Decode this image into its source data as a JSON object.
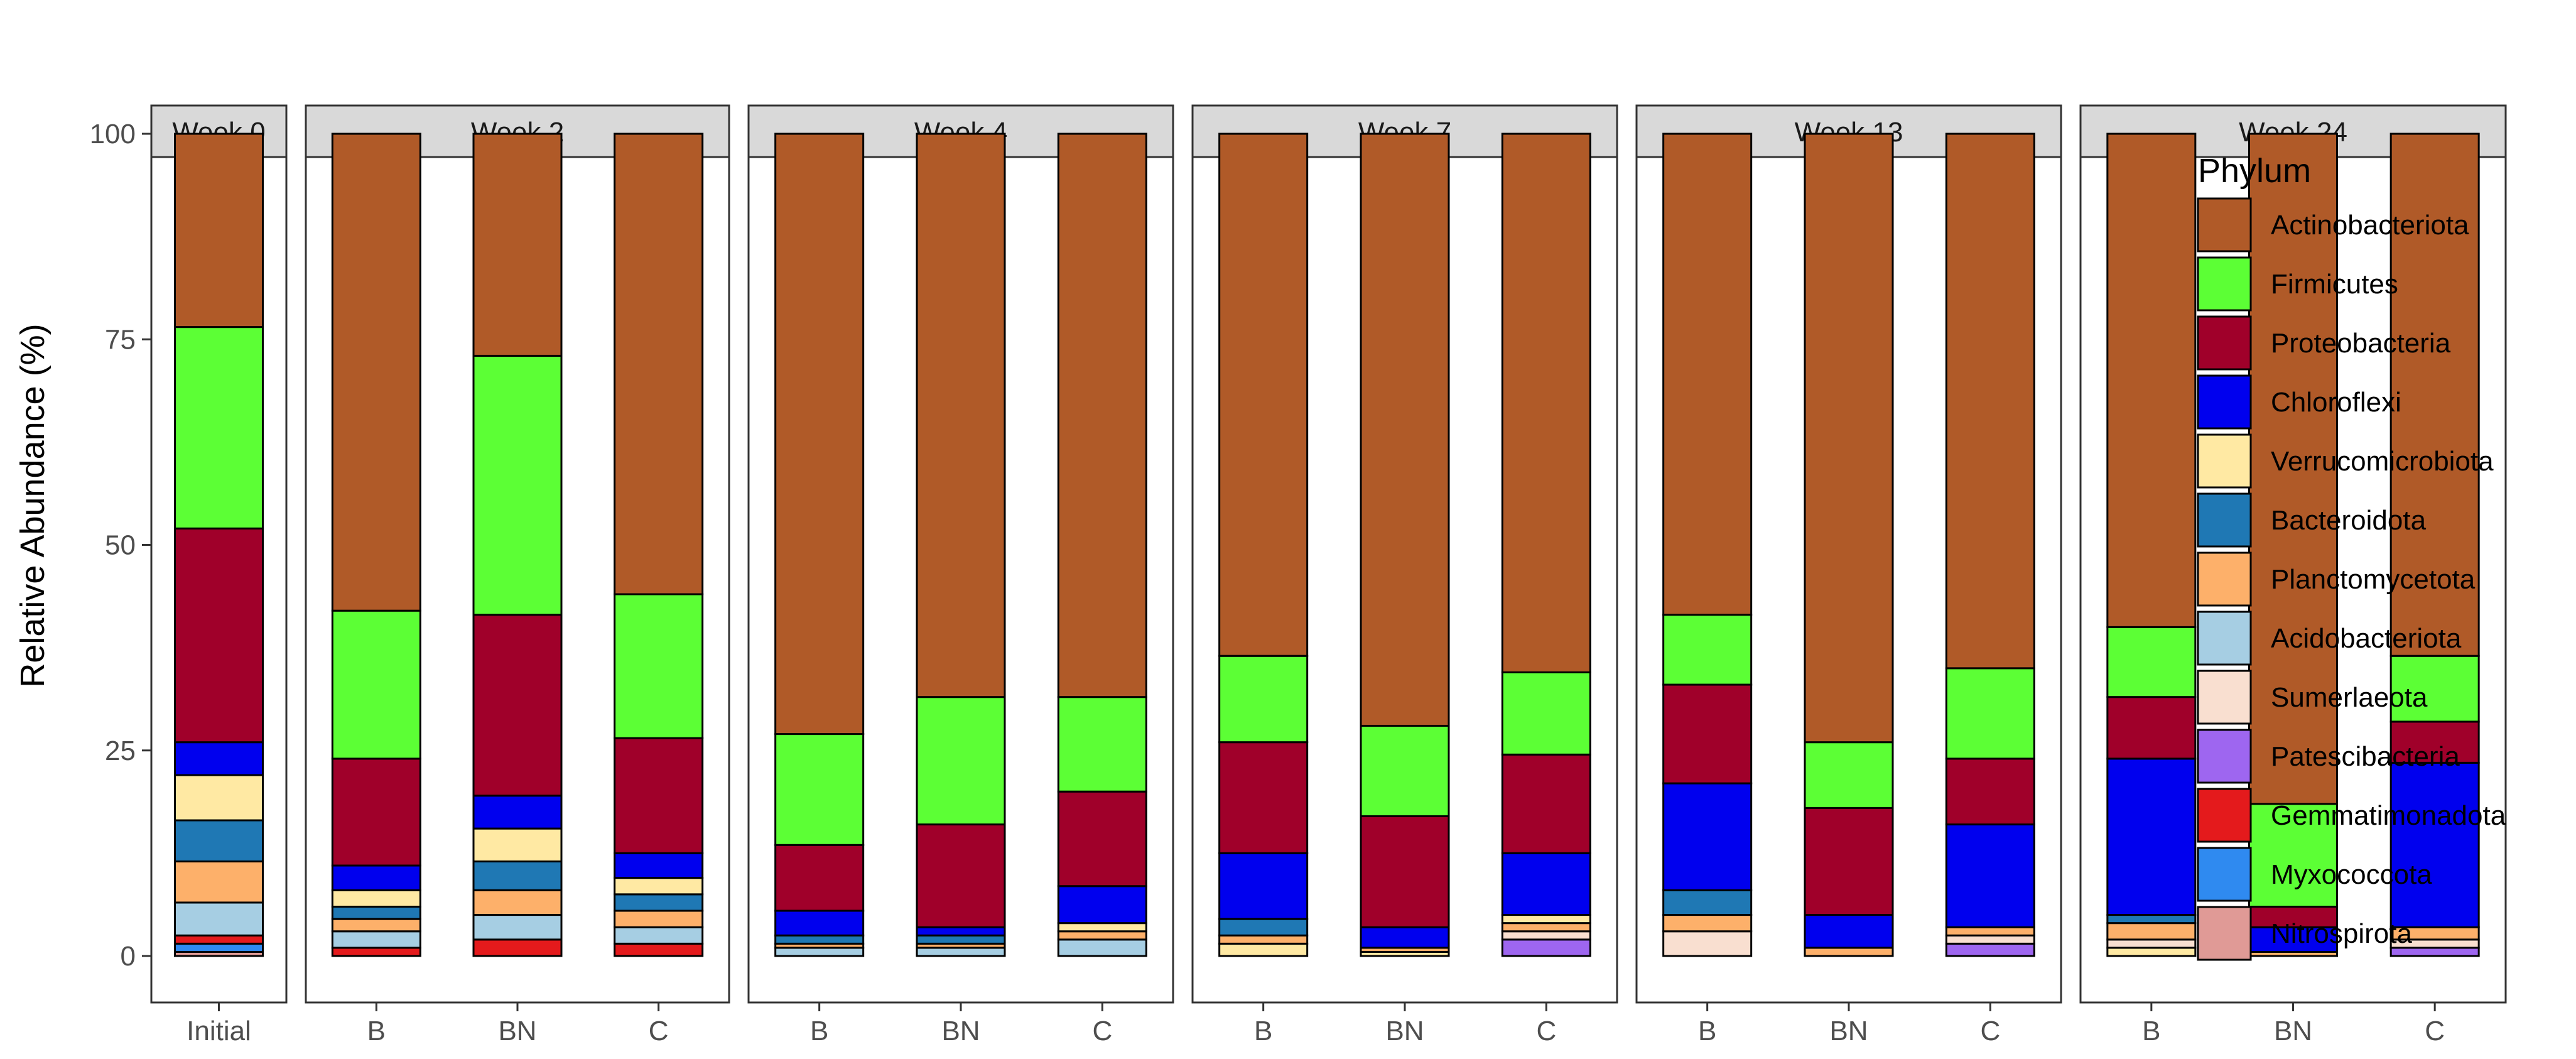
{
  "chart_data": {
    "type": "bar",
    "stacked": true,
    "ylabel": "Relative Abundance (%)",
    "ylim": [
      0,
      100
    ],
    "yticks": [
      0,
      25,
      50,
      75,
      100
    ],
    "legend_title": "Phylum",
    "legend_position": "right",
    "phyla": [
      {
        "name": "Actinobacteriota",
        "color": "#B05A28"
      },
      {
        "name": "Firmicutes",
        "color": "#5CFF35"
      },
      {
        "name": "Proteobacteria",
        "color": "#A0002A"
      },
      {
        "name": "Chloroflexi",
        "color": "#0000EE"
      },
      {
        "name": "Verrucomicrobiota",
        "color": "#FFE9A3"
      },
      {
        "name": "Bacteroidota",
        "color": "#1F78B4"
      },
      {
        "name": "Planctomycetota",
        "color": "#FDB06A"
      },
      {
        "name": "Acidobacteriota",
        "color": "#A6CEE3"
      },
      {
        "name": "Sumerlaeota",
        "color": "#F9DFD0"
      },
      {
        "name": "Patescibacteria",
        "color": "#9E66F0"
      },
      {
        "name": "Gemmatimonadota",
        "color": "#E41A1C"
      },
      {
        "name": "Myxococcota",
        "color": "#2F8AF0"
      },
      {
        "name": "Nitrospirota",
        "color": "#E09A96"
      }
    ],
    "facets": [
      {
        "label": "Week 0",
        "bars": [
          {
            "category": "Initial",
            "stack_order": [
              "Nitrospirota",
              "Myxococcota",
              "Gemmatimonadota",
              "Acidobacteriota",
              "Planctomycetota",
              "Bacteroidota",
              "Verrucomicrobiota",
              "Chloroflexi",
              "Proteobacteria",
              "Firmicutes",
              "Actinobacteriota"
            ],
            "values": {
              "Nitrospirota": 0.5,
              "Myxococcota": 1.0,
              "Gemmatimonadota": 1.0,
              "Acidobacteriota": 4.0,
              "Planctomycetota": 5.0,
              "Bacteroidota": 5.0,
              "Verrucomicrobiota": 5.5,
              "Chloroflexi": 4.0,
              "Proteobacteria": 26.0,
              "Firmicutes": 24.5,
              "Actinobacteriota": 23.5
            }
          }
        ]
      },
      {
        "label": "Week 2",
        "bars": [
          {
            "category": "B",
            "stack_order": [
              "Gemmatimonadota",
              "Acidobacteriota",
              "Planctomycetota",
              "Bacteroidota",
              "Verrucomicrobiota",
              "Chloroflexi",
              "Proteobacteria",
              "Firmicutes",
              "Actinobacteriota"
            ],
            "values": {
              "Gemmatimonadota": 1.0,
              "Acidobacteriota": 2.0,
              "Planctomycetota": 1.5,
              "Bacteroidota": 1.5,
              "Verrucomicrobiota": 2.0,
              "Chloroflexi": 3.0,
              "Proteobacteria": 13.0,
              "Firmicutes": 18.0,
              "Actinobacteriota": 58.0
            }
          },
          {
            "category": "BN",
            "stack_order": [
              "Gemmatimonadota",
              "Acidobacteriota",
              "Planctomycetota",
              "Bacteroidota",
              "Verrucomicrobiota",
              "Chloroflexi",
              "Proteobacteria",
              "Firmicutes",
              "Actinobacteriota"
            ],
            "values": {
              "Gemmatimonadota": 2.0,
              "Acidobacteriota": 3.0,
              "Planctomycetota": 3.0,
              "Bacteroidota": 3.5,
              "Verrucomicrobiota": 4.0,
              "Chloroflexi": 4.0,
              "Proteobacteria": 22.0,
              "Firmicutes": 31.5,
              "Actinobacteriota": 27.0
            }
          },
          {
            "category": "C",
            "stack_order": [
              "Gemmatimonadota",
              "Acidobacteriota",
              "Planctomycetota",
              "Bacteroidota",
              "Verrucomicrobiota",
              "Chloroflexi",
              "Proteobacteria",
              "Firmicutes",
              "Actinobacteriota"
            ],
            "values": {
              "Gemmatimonadota": 1.5,
              "Acidobacteriota": 2.0,
              "Planctomycetota": 2.0,
              "Bacteroidota": 2.0,
              "Verrucomicrobiota": 2.0,
              "Chloroflexi": 3.0,
              "Proteobacteria": 14.0,
              "Firmicutes": 17.5,
              "Actinobacteriota": 56.0
            }
          }
        ]
      },
      {
        "label": "Week 4",
        "bars": [
          {
            "category": "B",
            "stack_order": [
              "Acidobacteriota",
              "Planctomycetota",
              "Bacteroidota",
              "Chloroflexi",
              "Proteobacteria",
              "Firmicutes",
              "Actinobacteriota"
            ],
            "values": {
              "Acidobacteriota": 1.0,
              "Planctomycetota": 0.5,
              "Bacteroidota": 1.0,
              "Chloroflexi": 3.0,
              "Proteobacteria": 8.0,
              "Firmicutes": 13.5,
              "Actinobacteriota": 73.0
            }
          },
          {
            "category": "BN",
            "stack_order": [
              "Acidobacteriota",
              "Planctomycetota",
              "Bacteroidota",
              "Chloroflexi",
              "Proteobacteria",
              "Firmicutes",
              "Actinobacteriota"
            ],
            "values": {
              "Acidobacteriota": 1.0,
              "Planctomycetota": 0.5,
              "Bacteroidota": 1.0,
              "Chloroflexi": 1.0,
              "Proteobacteria": 12.5,
              "Firmicutes": 15.5,
              "Actinobacteriota": 68.5
            }
          },
          {
            "category": "C",
            "stack_order": [
              "Acidobacteriota",
              "Planctomycetota",
              "Verrucomicrobiota",
              "Chloroflexi",
              "Proteobacteria",
              "Firmicutes",
              "Actinobacteriota"
            ],
            "values": {
              "Acidobacteriota": 2.0,
              "Planctomycetota": 1.0,
              "Verrucomicrobiota": 1.0,
              "Chloroflexi": 4.5,
              "Proteobacteria": 11.5,
              "Firmicutes": 11.5,
              "Actinobacteriota": 68.5
            }
          }
        ]
      },
      {
        "label": "Week 7",
        "bars": [
          {
            "category": "B",
            "stack_order": [
              "Verrucomicrobiota",
              "Planctomycetota",
              "Bacteroidota",
              "Chloroflexi",
              "Proteobacteria",
              "Firmicutes",
              "Actinobacteriota"
            ],
            "values": {
              "Verrucomicrobiota": 1.5,
              "Planctomycetota": 1.0,
              "Bacteroidota": 2.0,
              "Chloroflexi": 8.0,
              "Proteobacteria": 13.5,
              "Firmicutes": 10.5,
              "Actinobacteriota": 63.5
            }
          },
          {
            "category": "BN",
            "stack_order": [
              "Verrucomicrobiota",
              "Planctomycetota",
              "Chloroflexi",
              "Proteobacteria",
              "Firmicutes",
              "Actinobacteriota"
            ],
            "values": {
              "Verrucomicrobiota": 0.5,
              "Planctomycetota": 0.5,
              "Chloroflexi": 2.5,
              "Proteobacteria": 13.5,
              "Firmicutes": 11.0,
              "Actinobacteriota": 72.0
            }
          },
          {
            "category": "C",
            "stack_order": [
              "Patescibacteria",
              "Sumerlaeota",
              "Planctomycetota",
              "Verrucomicrobiota",
              "Chloroflexi",
              "Proteobacteria",
              "Firmicutes",
              "Actinobacteriota"
            ],
            "values": {
              "Patescibacteria": 2.0,
              "Sumerlaeota": 1.0,
              "Planctomycetota": 1.0,
              "Verrucomicrobiota": 1.0,
              "Chloroflexi": 7.5,
              "Proteobacteria": 12.0,
              "Firmicutes": 10.0,
              "Actinobacteriota": 65.5
            }
          }
        ]
      },
      {
        "label": "Week 13",
        "bars": [
          {
            "category": "B",
            "stack_order": [
              "Sumerlaeota",
              "Planctomycetota",
              "Bacteroidota",
              "Chloroflexi",
              "Proteobacteria",
              "Firmicutes",
              "Actinobacteriota"
            ],
            "values": {
              "Sumerlaeota": 3.0,
              "Planctomycetota": 2.0,
              "Bacteroidota": 3.0,
              "Chloroflexi": 13.0,
              "Proteobacteria": 12.0,
              "Firmicutes": 8.5,
              "Actinobacteriota": 58.5
            }
          },
          {
            "category": "BN",
            "stack_order": [
              "Planctomycetota",
              "Chloroflexi",
              "Proteobacteria",
              "Firmicutes",
              "Actinobacteriota"
            ],
            "values": {
              "Planctomycetota": 1.0,
              "Chloroflexi": 4.0,
              "Proteobacteria": 13.0,
              "Firmicutes": 8.0,
              "Actinobacteriota": 74.0
            }
          },
          {
            "category": "C",
            "stack_order": [
              "Patescibacteria",
              "Sumerlaeota",
              "Planctomycetota",
              "Chloroflexi",
              "Proteobacteria",
              "Firmicutes",
              "Actinobacteriota"
            ],
            "values": {
              "Patescibacteria": 1.5,
              "Sumerlaeota": 1.0,
              "Planctomycetota": 1.0,
              "Chloroflexi": 12.5,
              "Proteobacteria": 8.0,
              "Firmicutes": 11.0,
              "Actinobacteriota": 65.0
            }
          }
        ]
      },
      {
        "label": "Week 24",
        "bars": [
          {
            "category": "B",
            "stack_order": [
              "Verrucomicrobiota",
              "Sumerlaeota",
              "Planctomycetota",
              "Bacteroidota",
              "Chloroflexi",
              "Proteobacteria",
              "Firmicutes",
              "Actinobacteriota"
            ],
            "values": {
              "Verrucomicrobiota": 1.0,
              "Sumerlaeota": 1.0,
              "Planctomycetota": 2.0,
              "Bacteroidota": 1.0,
              "Chloroflexi": 19.0,
              "Proteobacteria": 7.5,
              "Firmicutes": 8.5,
              "Actinobacteriota": 60.0
            }
          },
          {
            "category": "BN",
            "stack_order": [
              "Planctomycetota",
              "Chloroflexi",
              "Proteobacteria",
              "Firmicutes",
              "Actinobacteriota"
            ],
            "values": {
              "Planctomycetota": 0.5,
              "Chloroflexi": 3.0,
              "Proteobacteria": 2.5,
              "Firmicutes": 12.5,
              "Actinobacteriota": 81.5
            }
          },
          {
            "category": "C",
            "stack_order": [
              "Patescibacteria",
              "Sumerlaeota",
              "Planctomycetota",
              "Chloroflexi",
              "Proteobacteria",
              "Firmicutes",
              "Actinobacteriota"
            ],
            "values": {
              "Patescibacteria": 1.0,
              "Sumerlaeota": 1.0,
              "Planctomycetota": 1.5,
              "Chloroflexi": 20.0,
              "Proteobacteria": 5.0,
              "Firmicutes": 8.0,
              "Actinobacteriota": 63.5
            }
          }
        ]
      }
    ]
  }
}
